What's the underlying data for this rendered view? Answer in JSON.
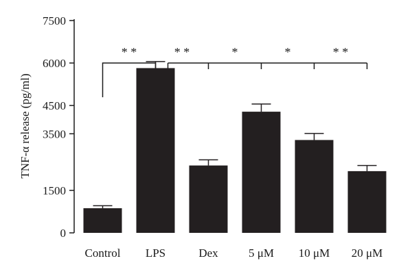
{
  "chart_data": {
    "type": "bar",
    "title": "",
    "xlabel": "",
    "ylabel": "TNF-α release (pg/ml)",
    "ylim": [
      0,
      7500
    ],
    "yticks": [
      "0",
      "1500",
      "3500",
      "4500",
      "6000",
      "7500"
    ],
    "categories": [
      "Control",
      "LPS",
      "Dex",
      "5 μM",
      "10 μM",
      "20 μM"
    ],
    "values": [
      870,
      5820,
      2380,
      4280,
      3280,
      2180
    ],
    "errors": [
      90,
      230,
      200,
      270,
      230,
      200
    ],
    "bar_color": "#231f20",
    "grid": false,
    "significance": [
      {
        "from": 0,
        "to": 1,
        "label": "* *"
      },
      {
        "from": 1,
        "to": 2,
        "label": "* *"
      },
      {
        "from": 2,
        "to": 3,
        "label": "*"
      },
      {
        "from": 3,
        "to": 4,
        "label": "*"
      },
      {
        "from": 4,
        "to": 5,
        "label": "* *"
      }
    ]
  }
}
